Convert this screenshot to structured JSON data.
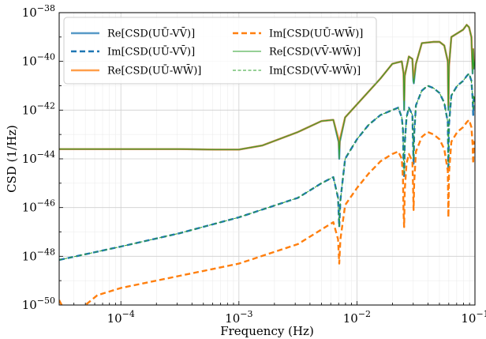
{
  "chart_data": {
    "type": "line",
    "title": "",
    "xlabel": "Frequency (Hz)",
    "ylabel": "CSD (1/Hz)",
    "xscale": "log",
    "yscale": "log",
    "xlim": [
      3e-05,
      0.1
    ],
    "ylim": [
      1e-50,
      1e-38
    ],
    "grid": "major and minor",
    "legend_position": "upper-left",
    "legend_columns": 2,
    "x_ticks": [
      {
        "base": "10",
        "exp": "−4",
        "value": 0.0001
      },
      {
        "base": "10",
        "exp": "−3",
        "value": 0.001
      },
      {
        "base": "10",
        "exp": "−2",
        "value": 0.01
      },
      {
        "base": "10",
        "exp": "−1",
        "value": 0.1
      }
    ],
    "y_ticks": [
      {
        "base": "10",
        "exp": "−50",
        "value": -50
      },
      {
        "base": "10",
        "exp": "−48",
        "value": -48
      },
      {
        "base": "10",
        "exp": "−46",
        "value": -46
      },
      {
        "base": "10",
        "exp": "−44",
        "value": -44
      },
      {
        "base": "10",
        "exp": "−42",
        "value": -42
      },
      {
        "base": "10",
        "exp": "−40",
        "value": -40
      },
      {
        "base": "10",
        "exp": "−38",
        "value": -38
      }
    ],
    "series": [
      {
        "name": "Re[CSD(UŪ-VV̄)]",
        "color": "#1f77b4",
        "style": "solid-thick",
        "log10_x": [
          -4.523,
          -4.0,
          -3.5,
          -3.2,
          -3.0,
          -2.8,
          -2.5,
          -2.3,
          -2.2,
          -2.155,
          -2.15,
          -2.145,
          -2.1,
          -1.95,
          -1.8,
          -1.7,
          -1.62,
          -1.605,
          -1.6,
          -1.595,
          -1.56,
          -1.53,
          -1.522,
          -1.518,
          -1.5,
          -1.45,
          -1.35,
          -1.3,
          -1.26,
          -1.23,
          -1.225,
          -1.22,
          -1.2,
          -1.1,
          -1.07,
          -1.05,
          -1.03,
          -1.02,
          -1.015,
          -1.01,
          -1.0
        ],
        "log10_y": [
          -43.6,
          -43.6,
          -43.6,
          -43.62,
          -43.62,
          -43.45,
          -42.9,
          -42.45,
          -42.4,
          -43.3,
          -44.0,
          -43.3,
          -42.3,
          -41.5,
          -40.7,
          -40.1,
          -40.0,
          -40.5,
          -42.0,
          -40.6,
          -39.8,
          -39.9,
          -40.8,
          -40.9,
          -40.1,
          -39.25,
          -39.2,
          -39.2,
          -39.35,
          -40.0,
          -42.0,
          -40.2,
          -39.0,
          -38.7,
          -38.5,
          -38.6,
          -39.0,
          -40.5,
          -39.5,
          -40.3,
          -39.9
        ]
      },
      {
        "name": "Im[CSD(UŪ-VV̄)]",
        "color": "#1f77b4",
        "style": "dashed-thick",
        "log10_x": [
          -4.523,
          -4.0,
          -3.5,
          -3.0,
          -2.5,
          -2.3,
          -2.2,
          -2.16,
          -2.15,
          -2.14,
          -2.1,
          -2.0,
          -1.9,
          -1.8,
          -1.7,
          -1.65,
          -1.62,
          -1.61,
          -1.605,
          -1.6,
          -1.595,
          -1.58,
          -1.56,
          -1.53,
          -1.525,
          -1.52,
          -1.515,
          -1.5,
          -1.45,
          -1.4,
          -1.35,
          -1.3,
          -1.26,
          -1.23,
          -1.225,
          -1.22,
          -1.2,
          -1.15,
          -1.1,
          -1.07,
          -1.05,
          -1.03,
          -1.02,
          -1.015,
          -1.01,
          -1.0
        ],
        "log10_y": [
          -48.15,
          -47.6,
          -47.05,
          -46.4,
          -45.6,
          -45.0,
          -44.75,
          -45.6,
          -46.8,
          -45.7,
          -44.0,
          -43.2,
          -42.6,
          -42.2,
          -42.0,
          -41.9,
          -42.3,
          -42.8,
          -44.2,
          -44.8,
          -43.4,
          -42.3,
          -41.9,
          -42.2,
          -43.3,
          -44.2,
          -43.0,
          -41.8,
          -41.2,
          -41.0,
          -41.1,
          -41.3,
          -41.7,
          -42.5,
          -44.5,
          -42.6,
          -41.4,
          -41.0,
          -40.8,
          -40.6,
          -40.5,
          -40.8,
          -41.5,
          -42.2,
          -41.4,
          -41.6
        ]
      },
      {
        "name": "Re[CSD(UŪ-WW̄)]",
        "color": "#ff7f0e",
        "style": "solid-thick",
        "log10_x": [
          -4.523,
          -4.0,
          -3.5,
          -3.2,
          -3.0,
          -2.8,
          -2.5,
          -2.3,
          -2.2,
          -2.155,
          -2.15,
          -2.145,
          -2.1,
          -1.95,
          -1.8,
          -1.7,
          -1.62,
          -1.605,
          -1.6,
          -1.595,
          -1.56,
          -1.53,
          -1.522,
          -1.518,
          -1.5,
          -1.45,
          -1.35,
          -1.3,
          -1.26,
          -1.23,
          -1.225,
          -1.22,
          -1.2,
          -1.1,
          -1.07,
          -1.05,
          -1.03,
          -1.02,
          -1.015,
          -1.01,
          -1.0
        ],
        "log10_y": [
          -43.6,
          -43.6,
          -43.6,
          -43.62,
          -43.62,
          -43.45,
          -42.9,
          -42.45,
          -42.4,
          -43.2,
          -43.6,
          -43.2,
          -42.3,
          -41.5,
          -40.7,
          -40.1,
          -40.0,
          -40.5,
          -41.6,
          -40.6,
          -39.8,
          -39.9,
          -40.6,
          -40.7,
          -40.1,
          -39.25,
          -39.2,
          -39.2,
          -39.35,
          -40.0,
          -41.8,
          -40.2,
          -39.0,
          -38.7,
          -38.5,
          -38.6,
          -39.0,
          -40.3,
          -39.5,
          -40.2,
          -39.9
        ]
      },
      {
        "name": "Im[CSD(UŪ-WW̄)]",
        "color": "#ff7f0e",
        "style": "dashed-thick",
        "log10_x": [
          -4.523,
          -4.48,
          -4.4,
          -4.35,
          -4.3,
          -4.2,
          -4.0,
          -3.5,
          -3.0,
          -2.5,
          -2.3,
          -2.2,
          -2.16,
          -2.15,
          -2.14,
          -2.1,
          -2.0,
          -1.9,
          -1.8,
          -1.7,
          -1.65,
          -1.62,
          -1.61,
          -1.605,
          -1.6,
          -1.595,
          -1.58,
          -1.56,
          -1.53,
          -1.525,
          -1.52,
          -1.515,
          -1.5,
          -1.45,
          -1.4,
          -1.35,
          -1.3,
          -1.26,
          -1.23,
          -1.225,
          -1.22,
          -1.2,
          -1.15,
          -1.1,
          -1.07,
          -1.05,
          -1.03,
          -1.02,
          -1.015,
          -1.01,
          -1.0
        ],
        "log10_y": [
          -49.8,
          -50.2,
          -51.0,
          -50.5,
          -50.0,
          -49.6,
          -49.3,
          -48.8,
          -48.3,
          -47.5,
          -46.9,
          -46.6,
          -47.3,
          -48.3,
          -47.3,
          -45.9,
          -45.2,
          -44.6,
          -44.1,
          -43.8,
          -43.7,
          -44.0,
          -44.8,
          -46.2,
          -46.8,
          -45.3,
          -44.2,
          -43.8,
          -44.1,
          -45.0,
          -46.1,
          -45.0,
          -43.7,
          -43.1,
          -42.9,
          -43.0,
          -43.2,
          -43.6,
          -44.5,
          -46.4,
          -44.6,
          -43.3,
          -42.9,
          -42.7,
          -42.5,
          -42.4,
          -42.7,
          -43.4,
          -44.2,
          -43.3,
          -43.5
        ]
      },
      {
        "name": "Re[CSD(VV̄-WW̄)]",
        "color": "#2ca02c",
        "style": "solid-thin",
        "log10_x": [
          -4.523,
          -4.0,
          -3.5,
          -3.2,
          -3.0,
          -2.8,
          -2.5,
          -2.3,
          -2.2,
          -2.155,
          -2.15,
          -2.145,
          -2.1,
          -1.95,
          -1.8,
          -1.7,
          -1.62,
          -1.605,
          -1.6,
          -1.595,
          -1.56,
          -1.53,
          -1.522,
          -1.518,
          -1.5,
          -1.45,
          -1.35,
          -1.3,
          -1.26,
          -1.23,
          -1.225,
          -1.22,
          -1.2,
          -1.1,
          -1.07,
          -1.05,
          -1.03,
          -1.02,
          -1.015,
          -1.01,
          -1.0
        ],
        "log10_y": [
          -43.6,
          -43.6,
          -43.6,
          -43.62,
          -43.62,
          -43.45,
          -42.9,
          -42.45,
          -42.4,
          -43.3,
          -44.0,
          -43.3,
          -42.3,
          -41.5,
          -40.7,
          -40.1,
          -40.0,
          -40.5,
          -42.0,
          -40.6,
          -39.8,
          -39.9,
          -40.8,
          -40.9,
          -40.1,
          -39.25,
          -39.2,
          -39.2,
          -39.35,
          -40.0,
          -42.0,
          -40.2,
          -39.0,
          -38.7,
          -38.5,
          -38.6,
          -39.0,
          -40.5,
          -39.5,
          -40.3,
          -39.9
        ]
      },
      {
        "name": "Im[CSD(VV̄-WW̄)]",
        "color": "#2ca02c",
        "style": "dashed-thin",
        "log10_x": [
          -4.523,
          -4.0,
          -3.5,
          -3.0,
          -2.5,
          -2.3,
          -2.2,
          -2.16,
          -2.15,
          -2.14,
          -2.1,
          -2.0,
          -1.9,
          -1.8,
          -1.7,
          -1.65,
          -1.62,
          -1.61,
          -1.605,
          -1.6,
          -1.595,
          -1.58,
          -1.56,
          -1.53,
          -1.525,
          -1.52,
          -1.515,
          -1.5,
          -1.45,
          -1.4,
          -1.35,
          -1.3,
          -1.26,
          -1.23,
          -1.225,
          -1.22,
          -1.2,
          -1.15,
          -1.1,
          -1.07,
          -1.05,
          -1.03,
          -1.02,
          -1.015,
          -1.01,
          -1.0
        ],
        "log10_y": [
          -48.15,
          -47.6,
          -47.05,
          -46.4,
          -45.6,
          -45.0,
          -44.75,
          -45.6,
          -46.8,
          -45.7,
          -44.0,
          -43.2,
          -42.6,
          -42.2,
          -42.0,
          -41.9,
          -42.3,
          -42.8,
          -44.0,
          -44.6,
          -43.4,
          -42.3,
          -41.9,
          -42.2,
          -43.3,
          -44.0,
          -43.0,
          -41.8,
          -41.2,
          -41.0,
          -41.1,
          -41.3,
          -41.7,
          -42.5,
          -44.3,
          -42.6,
          -41.4,
          -41.0,
          -40.8,
          -40.6,
          -40.5,
          -40.8,
          -41.5,
          -42.0,
          -41.4,
          -41.6
        ]
      }
    ]
  }
}
